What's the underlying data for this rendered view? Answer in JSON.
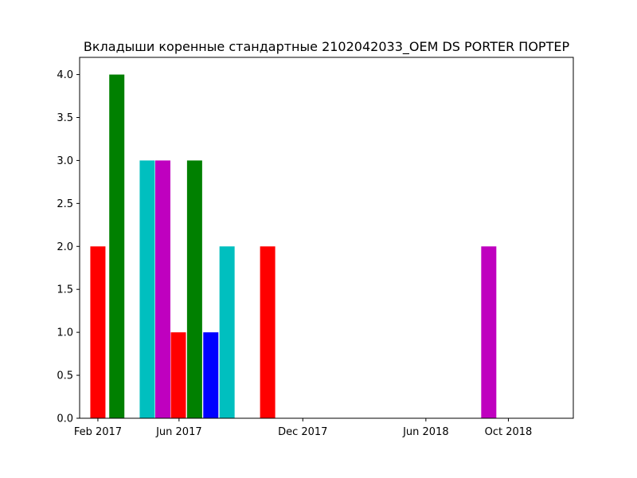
{
  "chart_data": {
    "type": "bar",
    "title": "Вкладыши коренные стандартные 2102042033_OEM DS PORTER ПОРТЕР",
    "xlabel": "",
    "ylabel": "",
    "x_axis_type": "date",
    "x_ticks": [
      {
        "date": "2017-02-01",
        "label": "Feb 2017"
      },
      {
        "date": "2017-06-01",
        "label": "Jun 2017"
      },
      {
        "date": "2017-12-01",
        "label": "Dec 2017"
      },
      {
        "date": "2018-06-01",
        "label": "Jun 2018"
      },
      {
        "date": "2018-10-01",
        "label": "Oct 2018"
      }
    ],
    "xlim": [
      "2017-01-05",
      "2019-01-05"
    ],
    "ylim": [
      0,
      4.2
    ],
    "y_ticks": [
      0.0,
      0.5,
      1.0,
      1.5,
      2.0,
      2.5,
      3.0,
      3.5,
      4.0
    ],
    "y_tick_labels": [
      "0.0",
      "0.5",
      "1.0",
      "1.5",
      "2.0",
      "2.5",
      "3.0",
      "3.5",
      "4.0"
    ],
    "grid": false,
    "bars": [
      {
        "date": "2017-02-01",
        "value": 2,
        "color": "#ff0000"
      },
      {
        "date": "2017-03-01",
        "value": 4,
        "color": "#008000"
      },
      {
        "date": "2017-04-15",
        "value": 3,
        "color": "#00bfbf"
      },
      {
        "date": "2017-05-08",
        "value": 3,
        "color": "#bf00bf"
      },
      {
        "date": "2017-05-31",
        "value": 1,
        "color": "#ff0000"
      },
      {
        "date": "2017-06-24",
        "value": 3,
        "color": "#008000"
      },
      {
        "date": "2017-07-18",
        "value": 1,
        "color": "#0000ff"
      },
      {
        "date": "2017-08-11",
        "value": 2,
        "color": "#00bfbf"
      },
      {
        "date": "2017-10-10",
        "value": 2,
        "color": "#ff0000"
      },
      {
        "date": "2018-09-02",
        "value": 2,
        "color": "#bf00bf"
      }
    ]
  }
}
